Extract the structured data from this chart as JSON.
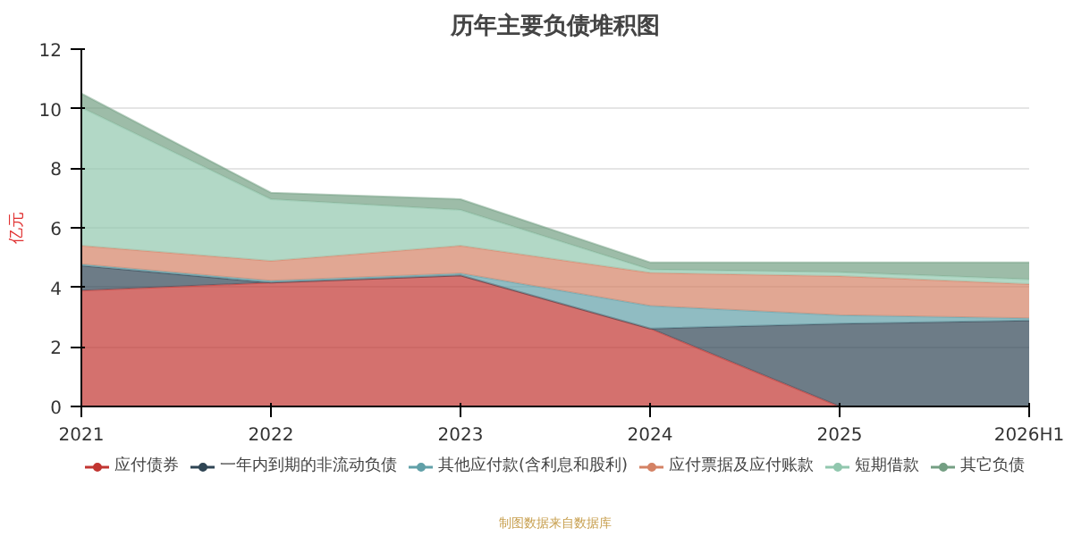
{
  "chart_data": {
    "type": "area",
    "title": "历年主要负债堆积图",
    "ylabel": "亿元",
    "stacked": true,
    "categories": [
      "2021",
      "2022",
      "2023",
      "2024",
      "2025",
      "2026H1"
    ],
    "series": [
      {
        "name": "应付债券",
        "color": "#c23531",
        "values": [
          3.89,
          4.16,
          4.4,
          2.62,
          0,
          0
        ]
      },
      {
        "name": "一年内到期的非流动负债",
        "color": "#2f4554",
        "values": [
          0.84,
          0,
          0,
          0,
          2.78,
          2.89
        ]
      },
      {
        "name": "其他应付款(含利息和股利)",
        "color": "#61a0a8",
        "values": [
          0.05,
          0.06,
          0.07,
          0.76,
          0.29,
          0.07
        ]
      },
      {
        "name": "应付票据及应付账款",
        "color": "#d48265",
        "values": [
          0.62,
          0.67,
          0.93,
          1.11,
          1.31,
          1.15
        ]
      },
      {
        "name": "短期借款",
        "color": "#91c7ae",
        "values": [
          4.64,
          2.07,
          1.2,
          0.11,
          0.13,
          0.16
        ]
      },
      {
        "name": "其它负债",
        "color": "#749f83",
        "values": [
          0.47,
          0.22,
          0.36,
          0.24,
          0.33,
          0.57
        ]
      }
    ],
    "ylim": [
      0,
      12
    ],
    "yticks": [
      0,
      2,
      4,
      6,
      8,
      10,
      12
    ],
    "grid": "y",
    "legend": "bottom",
    "annotations": [
      "制图数据来自数据库"
    ]
  }
}
